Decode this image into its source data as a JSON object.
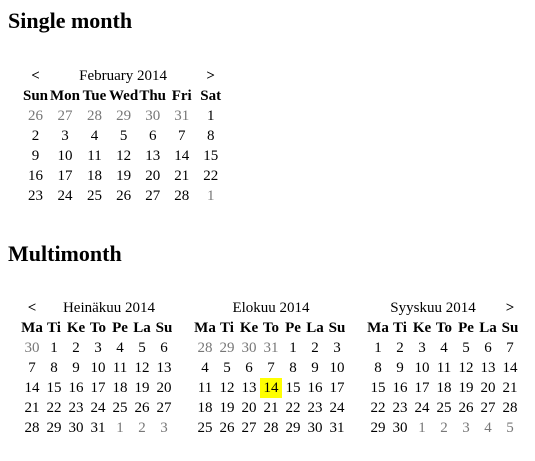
{
  "headings": {
    "single": "Single month",
    "multi": "Multimonth"
  },
  "nav": {
    "prev": "<",
    "next": ">"
  },
  "colors": {
    "today_highlight": "#ffff00",
    "other_month_text": "#777777"
  },
  "single": {
    "title": "February 2014",
    "weekdays": [
      "Sun",
      "Mon",
      "Tue",
      "Wed",
      "Thu",
      "Fri",
      "Sat"
    ],
    "weeks": [
      [
        {
          "d": "26",
          "o": true
        },
        {
          "d": "27",
          "o": true
        },
        {
          "d": "28",
          "o": true
        },
        {
          "d": "29",
          "o": true
        },
        {
          "d": "30",
          "o": true
        },
        {
          "d": "31",
          "o": true
        },
        {
          "d": "1"
        }
      ],
      [
        {
          "d": "2"
        },
        {
          "d": "3"
        },
        {
          "d": "4"
        },
        {
          "d": "5"
        },
        {
          "d": "6"
        },
        {
          "d": "7"
        },
        {
          "d": "8"
        }
      ],
      [
        {
          "d": "9"
        },
        {
          "d": "10"
        },
        {
          "d": "11"
        },
        {
          "d": "12"
        },
        {
          "d": "13"
        },
        {
          "d": "14"
        },
        {
          "d": "15"
        }
      ],
      [
        {
          "d": "16"
        },
        {
          "d": "17"
        },
        {
          "d": "18"
        },
        {
          "d": "19"
        },
        {
          "d": "20"
        },
        {
          "d": "21"
        },
        {
          "d": "22"
        }
      ],
      [
        {
          "d": "23"
        },
        {
          "d": "24"
        },
        {
          "d": "25"
        },
        {
          "d": "26"
        },
        {
          "d": "27"
        },
        {
          "d": "28"
        },
        {
          "d": "1",
          "o": true
        }
      ]
    ]
  },
  "multi": {
    "weekdays": [
      "Ma",
      "Ti",
      "Ke",
      "To",
      "Pe",
      "La",
      "Su"
    ],
    "months": [
      {
        "title": "Heinäkuu 2014",
        "weeks": [
          [
            {
              "d": "30",
              "o": true
            },
            {
              "d": "1"
            },
            {
              "d": "2"
            },
            {
              "d": "3"
            },
            {
              "d": "4"
            },
            {
              "d": "5"
            },
            {
              "d": "6"
            }
          ],
          [
            {
              "d": "7"
            },
            {
              "d": "8"
            },
            {
              "d": "9"
            },
            {
              "d": "10"
            },
            {
              "d": "11"
            },
            {
              "d": "12"
            },
            {
              "d": "13"
            }
          ],
          [
            {
              "d": "14"
            },
            {
              "d": "15"
            },
            {
              "d": "16"
            },
            {
              "d": "17"
            },
            {
              "d": "18"
            },
            {
              "d": "19"
            },
            {
              "d": "20"
            }
          ],
          [
            {
              "d": "21"
            },
            {
              "d": "22"
            },
            {
              "d": "23"
            },
            {
              "d": "24"
            },
            {
              "d": "25"
            },
            {
              "d": "26"
            },
            {
              "d": "27"
            }
          ],
          [
            {
              "d": "28"
            },
            {
              "d": "29"
            },
            {
              "d": "30"
            },
            {
              "d": "31"
            },
            {
              "d": "1",
              "o": true
            },
            {
              "d": "2",
              "o": true
            },
            {
              "d": "3",
              "o": true
            }
          ]
        ]
      },
      {
        "title": "Elokuu 2014",
        "weeks": [
          [
            {
              "d": "28",
              "o": true
            },
            {
              "d": "29",
              "o": true
            },
            {
              "d": "30",
              "o": true
            },
            {
              "d": "31",
              "o": true
            },
            {
              "d": "1"
            },
            {
              "d": "2"
            },
            {
              "d": "3"
            }
          ],
          [
            {
              "d": "4"
            },
            {
              "d": "5"
            },
            {
              "d": "6"
            },
            {
              "d": "7"
            },
            {
              "d": "8"
            },
            {
              "d": "9"
            },
            {
              "d": "10"
            }
          ],
          [
            {
              "d": "11"
            },
            {
              "d": "12"
            },
            {
              "d": "13"
            },
            {
              "d": "14",
              "today": true
            },
            {
              "d": "15"
            },
            {
              "d": "16"
            },
            {
              "d": "17"
            }
          ],
          [
            {
              "d": "18"
            },
            {
              "d": "19"
            },
            {
              "d": "20"
            },
            {
              "d": "21"
            },
            {
              "d": "22"
            },
            {
              "d": "23"
            },
            {
              "d": "24"
            }
          ],
          [
            {
              "d": "25"
            },
            {
              "d": "26"
            },
            {
              "d": "27"
            },
            {
              "d": "28"
            },
            {
              "d": "29"
            },
            {
              "d": "30"
            },
            {
              "d": "31"
            }
          ]
        ]
      },
      {
        "title": "Syyskuu 2014",
        "weeks": [
          [
            {
              "d": "1"
            },
            {
              "d": "2"
            },
            {
              "d": "3"
            },
            {
              "d": "4"
            },
            {
              "d": "5"
            },
            {
              "d": "6"
            },
            {
              "d": "7"
            }
          ],
          [
            {
              "d": "8"
            },
            {
              "d": "9"
            },
            {
              "d": "10"
            },
            {
              "d": "11"
            },
            {
              "d": "12"
            },
            {
              "d": "13"
            },
            {
              "d": "14"
            }
          ],
          [
            {
              "d": "15"
            },
            {
              "d": "16"
            },
            {
              "d": "17"
            },
            {
              "d": "18"
            },
            {
              "d": "19"
            },
            {
              "d": "20"
            },
            {
              "d": "21"
            }
          ],
          [
            {
              "d": "22"
            },
            {
              "d": "23"
            },
            {
              "d": "24"
            },
            {
              "d": "25"
            },
            {
              "d": "26"
            },
            {
              "d": "27"
            },
            {
              "d": "28"
            }
          ],
          [
            {
              "d": "29"
            },
            {
              "d": "30"
            },
            {
              "d": "1",
              "o": true
            },
            {
              "d": "2",
              "o": true
            },
            {
              "d": "3",
              "o": true
            },
            {
              "d": "4",
              "o": true
            },
            {
              "d": "5",
              "o": true
            }
          ]
        ]
      }
    ]
  }
}
